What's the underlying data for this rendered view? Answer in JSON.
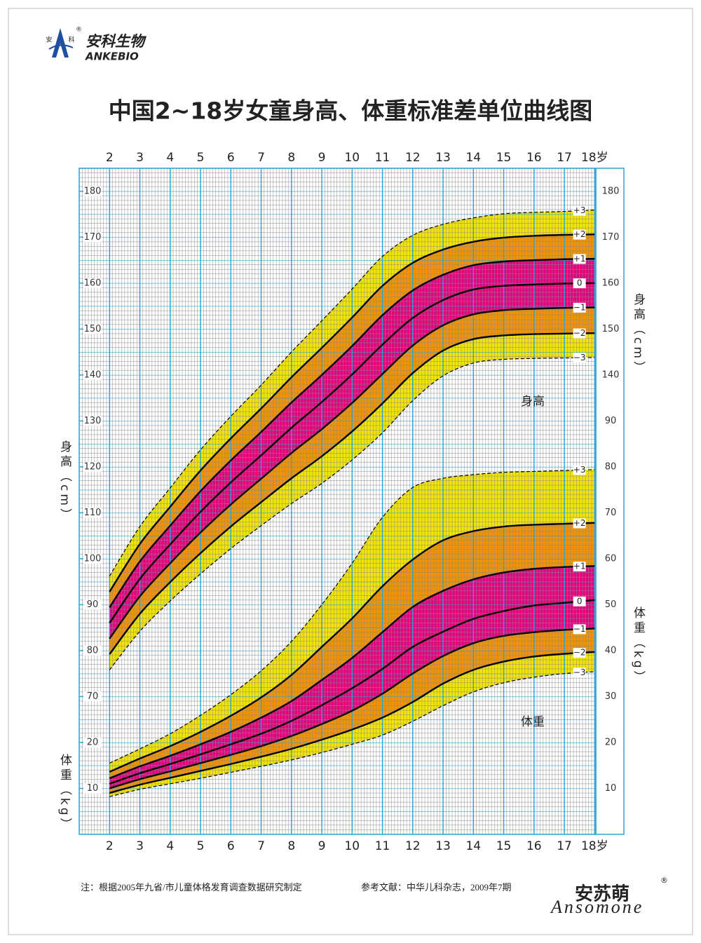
{
  "header": {
    "logo_left": "安",
    "logo_right": "科",
    "brand_cn": "安科生物",
    "brand_en": "ANKEBIO",
    "registered": "®"
  },
  "chart_data": {
    "type": "line",
    "title": "中国2~18岁女童身高、体重标准差单位曲线图",
    "x": [
      2,
      3,
      4,
      5,
      6,
      7,
      8,
      9,
      10,
      11,
      12,
      13,
      14,
      15,
      16,
      17,
      18
    ],
    "xlim": [
      1,
      18.04
    ],
    "xticks": [
      2,
      3,
      4,
      5,
      6,
      7,
      8,
      9,
      10,
      11,
      12,
      13,
      14,
      15,
      16,
      17,
      {
        "value": 18,
        "label": "18岁"
      }
    ],
    "grid": true,
    "band_colors": [
      "#f4e500",
      "#f39200",
      "#e5007e",
      "#e5007e",
      "#f39200",
      "#f4e500"
    ],
    "height": {
      "axis_label": "身高（cm）",
      "zone_label": "身高",
      "ylim": [
        40,
        185
      ],
      "yticks": [
        70,
        80,
        90,
        100,
        110,
        120,
        130,
        140,
        150,
        160,
        170,
        180
      ],
      "yticks_right": [
        140,
        150,
        160,
        170,
        180
      ],
      "series": [
        {
          "name": "−3",
          "color": "#000000",
          "dashed": true,
          "values": [
            75.8,
            84.2,
            90.8,
            96.7,
            102.2,
            107.2,
            112.0,
            116.4,
            121.5,
            127.4,
            134.4,
            139.8,
            142.6,
            143.4,
            143.6,
            143.7,
            143.8
          ]
        },
        {
          "name": "−2",
          "color": "#000000",
          "dashed": false,
          "values": [
            79.2,
            88.0,
            94.9,
            101.2,
            107.0,
            112.3,
            117.5,
            122.3,
            127.7,
            133.8,
            140.4,
            145.3,
            147.8,
            148.6,
            148.9,
            149.0,
            149.1
          ]
        },
        {
          "name": "−1",
          "color": "#000000",
          "dashed": false,
          "values": [
            82.6,
            91.8,
            99.0,
            105.7,
            111.8,
            117.4,
            123.0,
            128.2,
            133.9,
            140.2,
            146.4,
            150.8,
            153.2,
            154.1,
            154.4,
            154.6,
            154.7
          ]
        },
        {
          "name": "0",
          "color": "#000000",
          "dashed": false,
          "values": [
            86.0,
            95.6,
            103.1,
            110.2,
            116.6,
            122.5,
            128.5,
            134.1,
            140.1,
            146.6,
            152.4,
            156.3,
            158.6,
            159.4,
            159.7,
            159.9,
            160.0
          ]
        },
        {
          "name": "+1",
          "color": "#000000",
          "dashed": false,
          "values": [
            89.4,
            99.4,
            107.2,
            114.7,
            121.4,
            127.6,
            134.0,
            140.0,
            146.3,
            153.0,
            158.4,
            161.8,
            163.9,
            164.7,
            165.0,
            165.2,
            165.3
          ]
        },
        {
          "name": "+2",
          "color": "#000000",
          "dashed": false,
          "values": [
            92.8,
            103.2,
            111.3,
            119.2,
            126.2,
            132.7,
            139.5,
            145.9,
            152.5,
            159.4,
            164.4,
            167.3,
            169.0,
            169.9,
            170.3,
            170.5,
            170.6
          ]
        },
        {
          "name": "+3",
          "color": "#000000",
          "dashed": true,
          "values": [
            96.2,
            107.0,
            115.4,
            123.7,
            131.0,
            137.8,
            145.0,
            151.8,
            158.7,
            165.8,
            170.4,
            172.8,
            174.2,
            175.1,
            175.4,
            175.6,
            175.9
          ]
        }
      ]
    },
    "weight": {
      "axis_label": "体重（kg）",
      "zone_label": "体重",
      "y2lim": [
        0,
        145
      ],
      "y2ticks": [
        10,
        20,
        30,
        40,
        50,
        60,
        70,
        80,
        90
      ],
      "y2ticks_left": [
        10,
        20
      ],
      "series": [
        {
          "name": "−3",
          "color": "#000000",
          "dashed": true,
          "values": [
            8.2,
            9.8,
            11.0,
            12.2,
            13.5,
            14.8,
            16.2,
            17.8,
            19.6,
            21.6,
            24.6,
            28.0,
            31.0,
            33.0,
            34.2,
            35.0,
            35.4
          ]
        },
        {
          "name": "−2",
          "color": "#000000",
          "dashed": false,
          "values": [
            9.0,
            10.8,
            12.3,
            13.8,
            15.3,
            16.9,
            18.6,
            20.6,
            22.8,
            25.4,
            28.8,
            32.8,
            35.8,
            37.6,
            38.7,
            39.3,
            39.7
          ]
        },
        {
          "name": "−1",
          "color": "#000000",
          "dashed": false,
          "values": [
            10.0,
            12.0,
            13.7,
            15.5,
            17.3,
            19.2,
            21.4,
            24.0,
            26.9,
            30.6,
            35.0,
            38.8,
            41.6,
            43.2,
            44.0,
            44.5,
            44.8
          ]
        },
        {
          "name": "0",
          "color": "#000000",
          "dashed": false,
          "values": [
            11.0,
            13.3,
            15.3,
            17.4,
            19.6,
            21.9,
            24.7,
            28.1,
            31.8,
            36.0,
            40.8,
            44.1,
            46.9,
            48.6,
            49.8,
            50.4,
            51.0
          ]
        },
        {
          "name": "+1",
          "color": "#000000",
          "dashed": false,
          "values": [
            12.2,
            14.8,
            17.1,
            19.6,
            22.3,
            25.4,
            29.0,
            33.6,
            38.4,
            44.0,
            49.5,
            53.0,
            55.5,
            57.0,
            57.8,
            58.2,
            58.4
          ]
        },
        {
          "name": "+2",
          "color": "#000000",
          "dashed": false,
          "values": [
            13.6,
            16.5,
            19.2,
            22.3,
            25.8,
            29.8,
            34.7,
            40.8,
            47.0,
            54.0,
            59.8,
            64.0,
            66.0,
            67.0,
            67.4,
            67.6,
            67.8
          ]
        },
        {
          "name": "+3",
          "color": "#000000",
          "dashed": true,
          "values": [
            15.5,
            18.6,
            21.9,
            25.9,
            30.4,
            35.6,
            42.0,
            50.0,
            59.0,
            69.0,
            75.5,
            77.5,
            78.3,
            78.8,
            79.0,
            79.2,
            79.4
          ]
        }
      ]
    }
  },
  "footer": {
    "note": "注：根据2005年九省/市儿童体格发育调查数据研究制定",
    "reference": "参考文献：中华儿科杂志，2009年7期",
    "brand_cn": "安苏萌",
    "brand_en": "Ansomone"
  }
}
